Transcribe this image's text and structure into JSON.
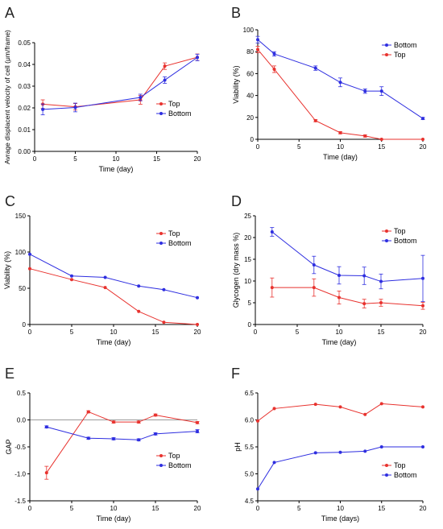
{
  "colors": {
    "top": "#e8322e",
    "bottom": "#2e2ee0",
    "zero_line": "#9a9a9a",
    "axis": "#000000"
  },
  "chart_data": [
    {
      "id": "A",
      "panel_label": "A",
      "type": "line",
      "xlabel": "Time (day)",
      "ylabel": "Avrage displacent velocity of cell (μm/frame)",
      "xlim": [
        0,
        20
      ],
      "ylim": [
        0,
        0.05
      ],
      "xticks": [
        0,
        5,
        10,
        15,
        20
      ],
      "yticks": [
        0,
        0.01,
        0.02,
        0.03,
        0.04,
        0.05
      ],
      "ytick_labels": [
        "0.00",
        "0.01",
        "0.02",
        "0.03",
        "0.04",
        "0.05"
      ],
      "legend": "right-middle",
      "series": [
        {
          "name": "Top",
          "color": "#e8322e",
          "x": [
            1,
            5,
            13,
            16,
            20
          ],
          "y": [
            0.0217,
            0.0205,
            0.0237,
            0.0392,
            0.0433
          ],
          "err": [
            0.002,
            0.0015,
            0.002,
            0.0015,
            0.0015
          ]
        },
        {
          "name": "Bottom",
          "color": "#2e2ee0",
          "x": [
            1,
            5,
            13,
            16,
            20
          ],
          "y": [
            0.0193,
            0.0202,
            0.0248,
            0.0328,
            0.0432
          ],
          "err": [
            0.0025,
            0.002,
            0.0015,
            0.0015,
            0.0015
          ]
        }
      ]
    },
    {
      "id": "B",
      "panel_label": "B",
      "type": "line",
      "xlabel": "Time (day)",
      "ylabel": "Viability (%)",
      "xlim": [
        0,
        20
      ],
      "ylim": [
        0,
        100
      ],
      "xticks": [
        0,
        5,
        10,
        15,
        20
      ],
      "yticks": [
        0,
        20,
        40,
        60,
        80,
        100
      ],
      "legend": "top-right",
      "series": [
        {
          "name": "Bottom",
          "color": "#2e2ee0",
          "x": [
            0,
            2,
            7,
            10,
            13,
            15,
            20
          ],
          "y": [
            91,
            78,
            65,
            52,
            44,
            44,
            19
          ],
          "err": [
            3,
            2,
            2,
            4,
            2,
            4,
            1
          ]
        },
        {
          "name": "Top",
          "color": "#e8322e",
          "x": [
            0,
            2,
            7,
            10,
            13,
            15,
            20
          ],
          "y": [
            82,
            64,
            17,
            6,
            3,
            0,
            0
          ],
          "err": [
            3,
            3,
            1,
            1,
            1,
            0,
            0
          ]
        }
      ]
    },
    {
      "id": "C",
      "panel_label": "C",
      "type": "line",
      "xlabel": "Time (day)",
      "ylabel": "Viability (%)",
      "xlim": [
        0,
        20
      ],
      "ylim": [
        0,
        150
      ],
      "xticks": [
        0,
        5,
        10,
        15,
        20
      ],
      "yticks": [
        0,
        50,
        100,
        150
      ],
      "legend": "top-right",
      "series": [
        {
          "name": "Top",
          "color": "#e8322e",
          "x": [
            0,
            5,
            9,
            13,
            16,
            20
          ],
          "y": [
            77,
            62,
            51,
            18,
            3,
            0
          ],
          "err": [
            0,
            0,
            0,
            0,
            0,
            0
          ]
        },
        {
          "name": "Bottom",
          "color": "#2e2ee0",
          "x": [
            0,
            5,
            9,
            13,
            16,
            20
          ],
          "y": [
            97,
            67,
            65,
            53,
            48,
            37
          ],
          "err": [
            0,
            0,
            0,
            0,
            0,
            0
          ]
        }
      ]
    },
    {
      "id": "D",
      "panel_label": "D",
      "type": "line",
      "xlabel": "Time (day)",
      "ylabel": "Glycogen (dry mass %)",
      "xlim": [
        0,
        20
      ],
      "ylim": [
        0,
        25
      ],
      "xticks": [
        0,
        5,
        10,
        15,
        20
      ],
      "yticks": [
        0,
        5,
        10,
        15,
        20,
        25
      ],
      "legend": "top-right",
      "series": [
        {
          "name": "Top",
          "color": "#e8322e",
          "x": [
            2,
            7,
            10,
            13,
            15,
            20
          ],
          "y": [
            8.5,
            8.5,
            6.2,
            4.8,
            5.0,
            4.3
          ],
          "err": [
            2.2,
            2.0,
            1.5,
            1.0,
            0.8,
            0.8
          ]
        },
        {
          "name": "Bottom",
          "color": "#2e2ee0",
          "x": [
            2,
            7,
            10,
            13,
            15,
            20
          ],
          "y": [
            21.3,
            13.7,
            11.3,
            11.2,
            9.9,
            10.6
          ],
          "err": [
            1.0,
            2.0,
            2.0,
            2.0,
            1.7,
            5.3
          ]
        }
      ]
    },
    {
      "id": "E",
      "panel_label": "E",
      "type": "line",
      "xlabel": "Time (day)",
      "ylabel": "GAP",
      "xlim": [
        0,
        20
      ],
      "ylim": [
        -1.5,
        0.5
      ],
      "xticks": [
        0,
        5,
        10,
        15,
        20
      ],
      "yticks": [
        -1.5,
        -1.0,
        -0.5,
        0.0,
        0.5
      ],
      "ytick_labels": [
        "-1.5",
        "-1.0",
        "-0.5",
        "0.0",
        "0.5"
      ],
      "zero_line": 0,
      "legend": "bottom-right",
      "series": [
        {
          "name": "Top",
          "color": "#e8322e",
          "x": [
            2,
            7,
            10,
            13,
            15,
            20
          ],
          "y": [
            -0.98,
            0.15,
            -0.04,
            -0.04,
            0.09,
            -0.05
          ],
          "err": [
            0.12,
            0.02,
            0.02,
            0.02,
            0.02,
            0.02
          ]
        },
        {
          "name": "Bottom",
          "color": "#2e2ee0",
          "x": [
            2,
            7,
            10,
            13,
            15,
            20
          ],
          "y": [
            -0.13,
            -0.34,
            -0.35,
            -0.37,
            -0.26,
            -0.21
          ],
          "err": [
            0.02,
            0.02,
            0.02,
            0.02,
            0.02,
            0.03
          ]
        }
      ]
    },
    {
      "id": "F",
      "panel_label": "F",
      "type": "line",
      "xlabel": "Time (days)",
      "ylabel": "pH",
      "xlim": [
        0,
        20
      ],
      "ylim": [
        4.5,
        6.5
      ],
      "xticks": [
        0,
        5,
        10,
        15,
        20
      ],
      "yticks": [
        4.5,
        5.0,
        5.5,
        6.0,
        6.5
      ],
      "ytick_labels": [
        "4.5",
        "5.0",
        "5.5",
        "6.0",
        "6.5"
      ],
      "legend": "bottom-right",
      "series": [
        {
          "name": "Top",
          "color": "#e8322e",
          "x": [
            0,
            2,
            7,
            10,
            13,
            15,
            20
          ],
          "y": [
            5.98,
            6.21,
            6.29,
            6.24,
            6.1,
            6.3,
            6.24
          ],
          "err": [
            0,
            0,
            0,
            0,
            0,
            0,
            0
          ]
        },
        {
          "name": "Bottom",
          "color": "#2e2ee0",
          "x": [
            0,
            2,
            7,
            10,
            13,
            15,
            20
          ],
          "y": [
            4.72,
            5.21,
            5.39,
            5.4,
            5.42,
            5.5,
            5.5
          ],
          "err": [
            0,
            0,
            0,
            0,
            0,
            0,
            0
          ]
        }
      ]
    }
  ]
}
